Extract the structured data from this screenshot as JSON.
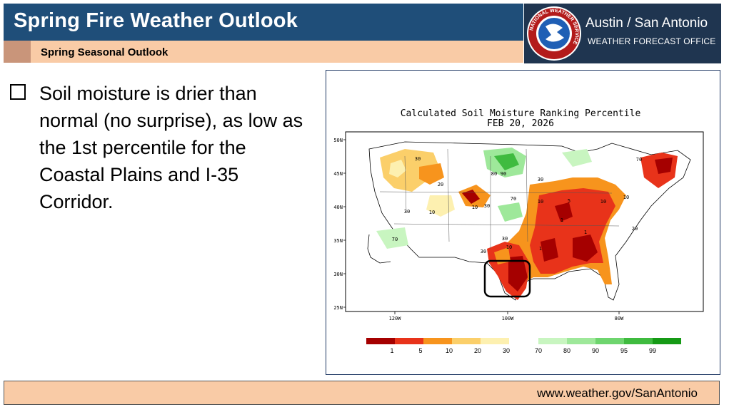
{
  "header": {
    "title": "Spring Fire Weather Outlook",
    "subtitle": "Spring Seasonal Outlook"
  },
  "office": {
    "name": "Austin / San Antonio",
    "subname": "WEATHER FORECAST OFFICE",
    "logo_text": "NATIONAL WEATHER SERVICE"
  },
  "content": {
    "bullet_text": "Soil moisture is drier than normal (no surprise), as low as the 1st percentile for the Coastal Plains and I-35 Corridor."
  },
  "map": {
    "title": "Calculated Soil Moisture Ranking Percentile",
    "date": "FEB 20, 2026",
    "lat_labels": [
      "50N",
      "45N",
      "40N",
      "35N",
      "30N",
      "25N"
    ],
    "lon_labels": [
      "120W",
      "100W",
      "80W"
    ],
    "contour_labels": [
      "30",
      "20",
      "10",
      "5",
      "1",
      "70",
      "80",
      "90"
    ],
    "legend_dry": [
      "1",
      "5",
      "10",
      "20",
      "30"
    ],
    "legend_wet": [
      "70",
      "80",
      "90",
      "95",
      "99"
    ],
    "colors": {
      "p1": "#a50000",
      "p5": "#e8331a",
      "p10": "#f7941d",
      "p20": "#fbcf6a",
      "p30": "#fdf0b0",
      "p70": "#c8f5c0",
      "p80": "#9ee89a",
      "p90": "#6ed56e",
      "p95": "#3fbb3f",
      "p99": "#159a15"
    }
  },
  "footer": {
    "url": "www.weather.gov/SanAntonio"
  }
}
